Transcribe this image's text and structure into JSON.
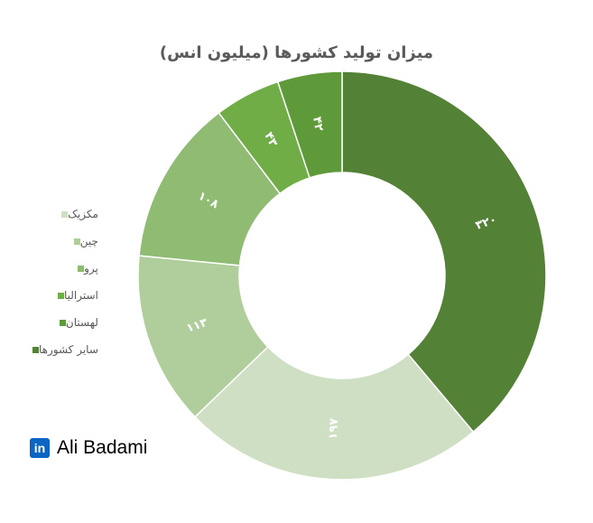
{
  "chart_data": {
    "type": "pie",
    "title": "میزان تولید کشورها (میلیون انس)",
    "categories": [
      "مکزیک",
      "چین",
      "پرو",
      "استرالیا",
      "لهستان",
      "سایر کشورها"
    ],
    "values": [
      197,
      113,
      108,
      43,
      42,
      320
    ],
    "value_labels": [
      "۱۹۷",
      "۱۱۳",
      "۱۰۸",
      "۴۳",
      "۴۲",
      "۳۲۰"
    ],
    "colors": [
      "#cfdfc3",
      "#b0cd9c",
      "#8fbb73",
      "#70ad47",
      "#5f9a3a",
      "#538135"
    ],
    "legend_position": "left",
    "donut": true
  },
  "branding": {
    "icon": "linkedin-icon",
    "icon_text": "in",
    "name": "Ali Badami"
  }
}
